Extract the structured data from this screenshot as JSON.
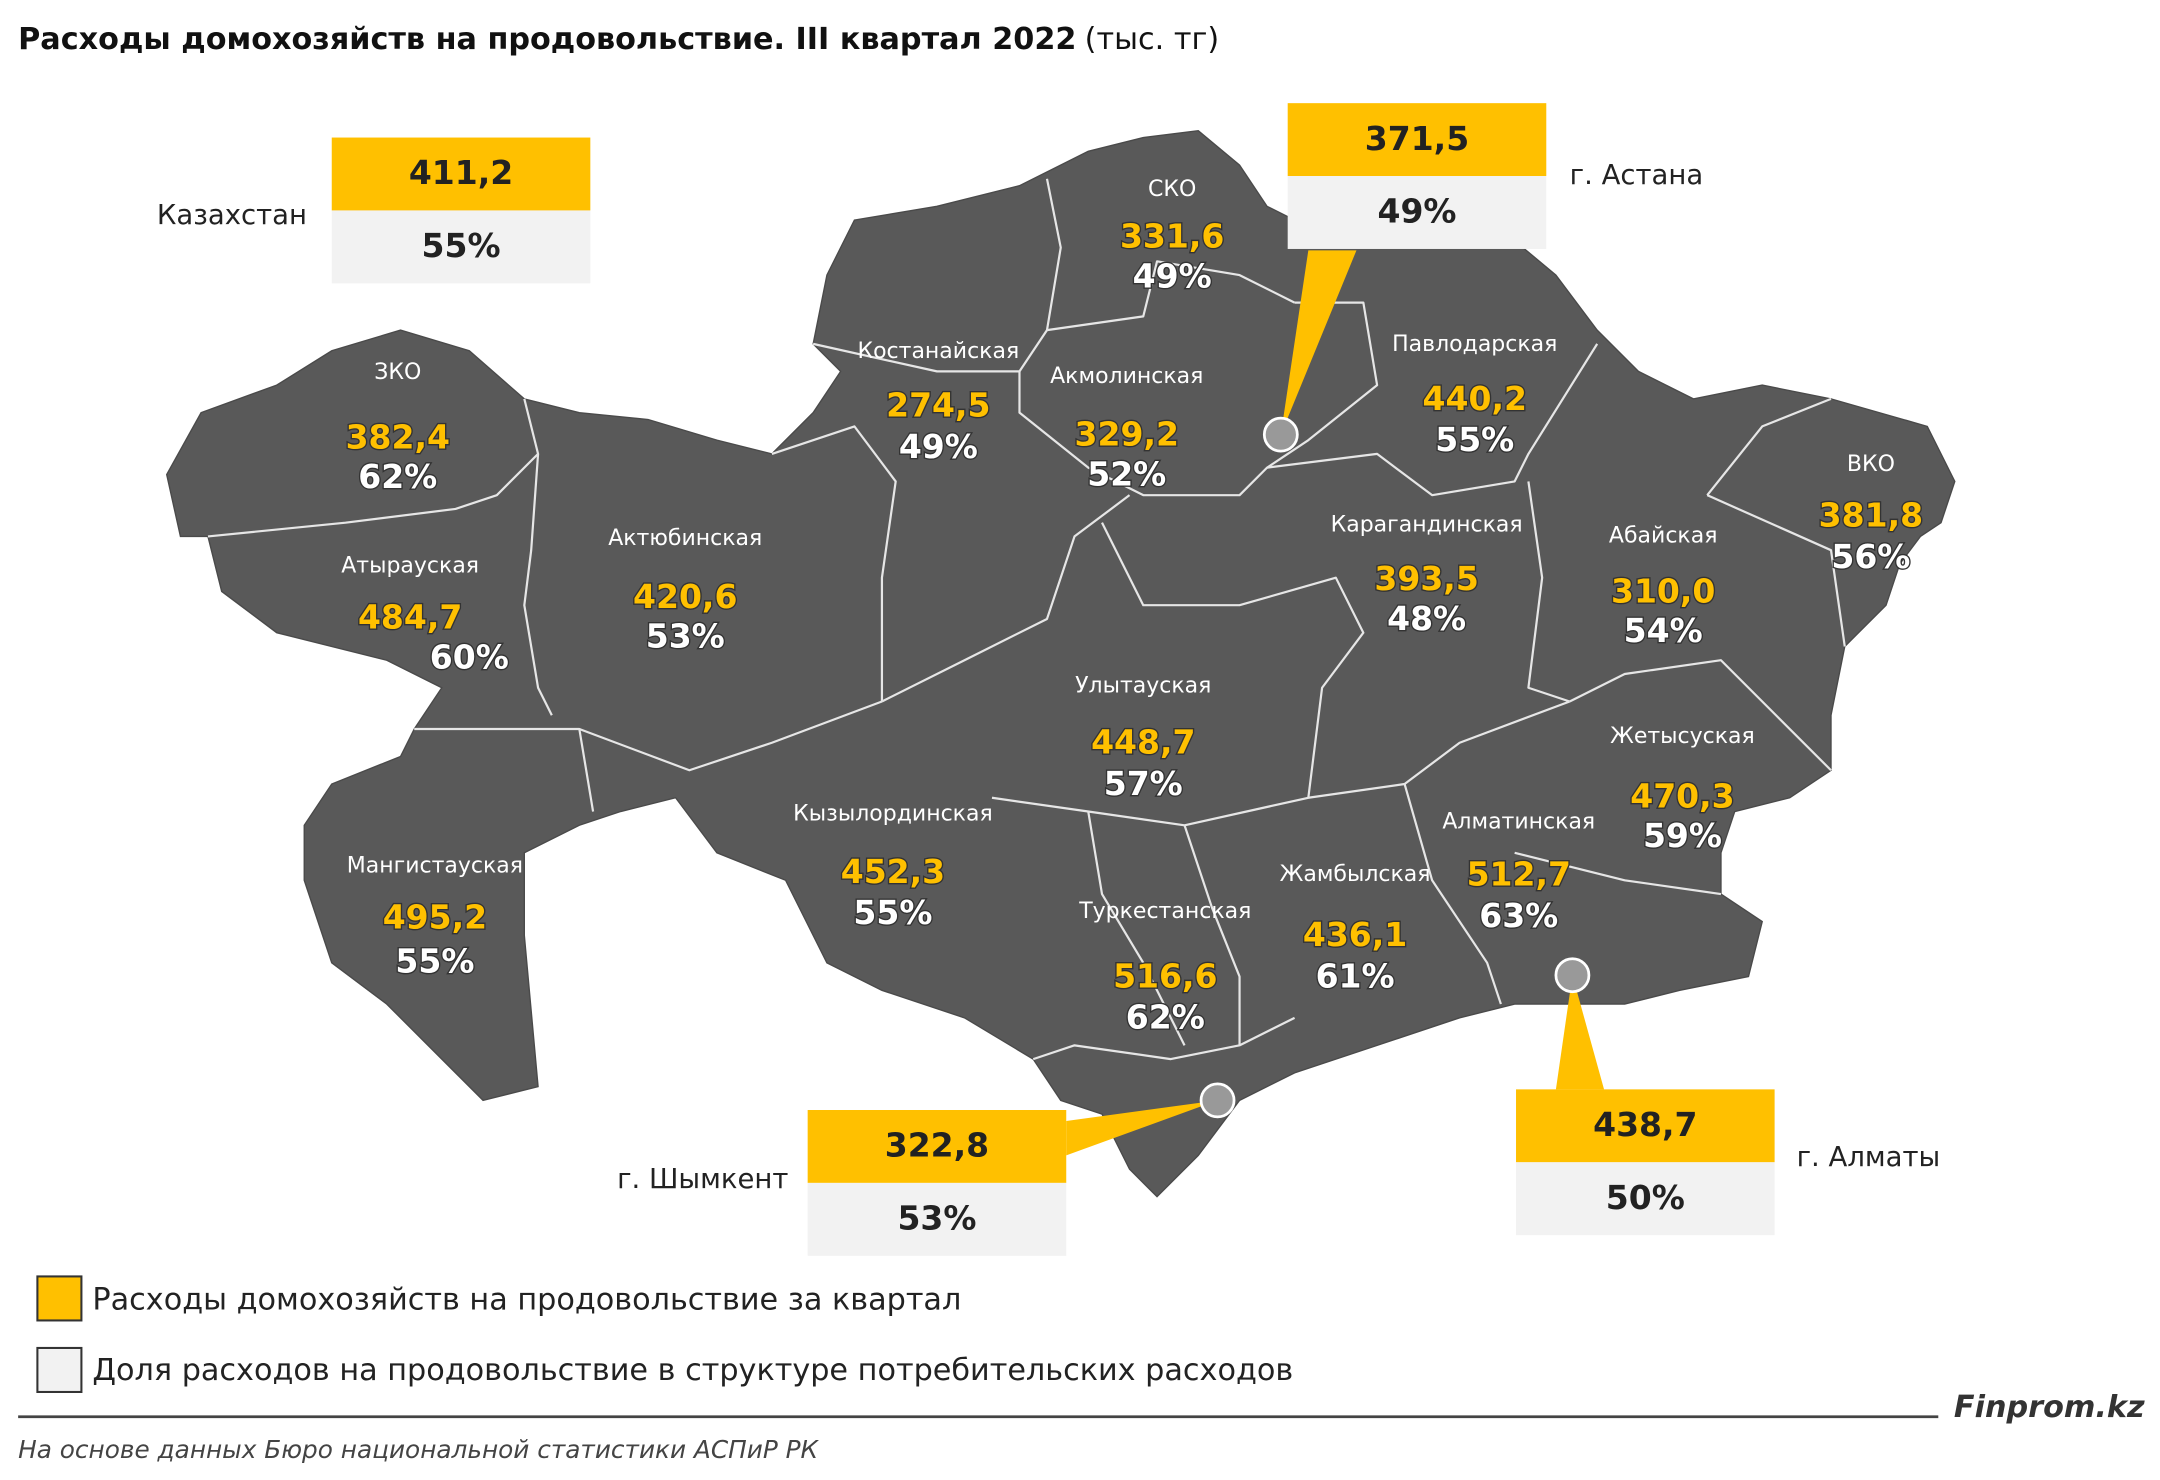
{
  "title": "Расходы домохозяйств на продовольствие. III квартал 2022",
  "subtitle": "(тыс. тг)",
  "country": {
    "name": "Казахстан",
    "value": "411,2",
    "share": "55%"
  },
  "regions": [
    {
      "name": "ЗКО",
      "value": "382,4",
      "share": "62%"
    },
    {
      "name": "Атырауская",
      "value": "484,7",
      "share": "60%"
    },
    {
      "name": "Мангистауская",
      "value": "495,2",
      "share": "55%"
    },
    {
      "name": "Актюбинская",
      "value": "420,6",
      "share": "53%"
    },
    {
      "name": "Костанайская",
      "value": "274,5",
      "share": "49%"
    },
    {
      "name": "СКО",
      "value": "331,6",
      "share": "49%"
    },
    {
      "name": "Акмолинская",
      "value": "329,2",
      "share": "52%"
    },
    {
      "name": "Павлодарская",
      "value": "440,2",
      "share": "55%"
    },
    {
      "name": "Карагандинская",
      "value": "393,5",
      "share": "48%"
    },
    {
      "name": "Абайская",
      "value": "310,0",
      "share": "54%"
    },
    {
      "name": "ВКО",
      "value": "381,8",
      "share": "56%"
    },
    {
      "name": "Улытауская",
      "value": "448,7",
      "share": "57%"
    },
    {
      "name": "Кызылординская",
      "value": "452,3",
      "share": "55%"
    },
    {
      "name": "Туркестанская",
      "value": "516,6",
      "share": "62%"
    },
    {
      "name": "Жамбылская",
      "value": "436,1",
      "share": "61%"
    },
    {
      "name": "Алматинская",
      "value": "512,7",
      "share": "63%"
    },
    {
      "name": "Жетысуская",
      "value": "470,3",
      "share": "59%"
    }
  ],
  "cities": [
    {
      "name": "г. Астана",
      "value": "371,5",
      "share": "49%"
    },
    {
      "name": "г. Шымкент",
      "value": "322,8",
      "share": "53%"
    },
    {
      "name": "г. Алматы",
      "value": "438,7",
      "share": "50%"
    }
  ],
  "legend": [
    "Расходы домохозяйств на продовольствие за квартал",
    "Доля расходов на продовольствие в структуре потребительских расходов"
  ],
  "brand": "Finprom.kz",
  "source": "На основе данных Бюро национальной статистики АСПиР РК"
}
